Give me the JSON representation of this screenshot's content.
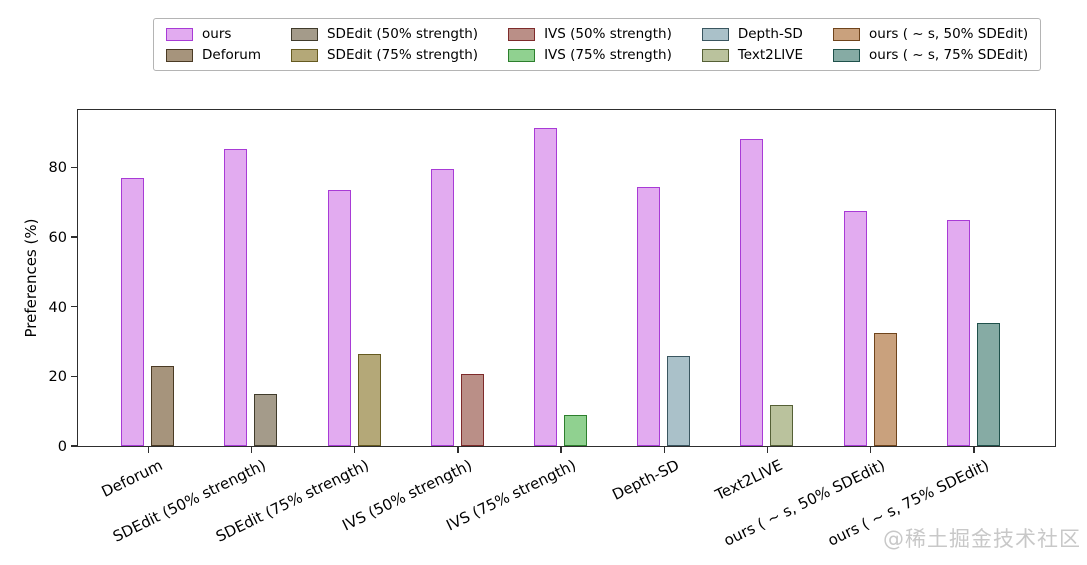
{
  "watermark": "@稀土掘金技术社区",
  "chart_data": {
    "type": "bar",
    "title": "",
    "xlabel": "",
    "ylabel": "Preferences (%)",
    "ylim": [
      0,
      96.5
    ],
    "yticks": [
      0,
      20,
      40,
      60,
      80
    ],
    "grid": false,
    "legend_position": "top-center",
    "ours_series": {
      "label": "ours",
      "fill": "#e2abf0",
      "edge": "#a83bd6"
    },
    "groups": [
      {
        "label": "Deforum",
        "ours_value": 77.0,
        "method_value": 23.0,
        "fill": "#a6947c",
        "edge": "#4a3a24"
      },
      {
        "label": "SDEdit (50% strength)",
        "ours_value": 85.3,
        "method_value": 14.8,
        "fill": "#a49b8a",
        "edge": "#403b2b"
      },
      {
        "label": "SDEdit (75% strength)",
        "ours_value": 73.5,
        "method_value": 26.5,
        "fill": "#b4a878",
        "edge": "#655a20"
      },
      {
        "label": "IVS (50% strength)",
        "ours_value": 79.5,
        "method_value": 20.6,
        "fill": "#ba8f87",
        "edge": "#7e2b2b"
      },
      {
        "label": "IVS (75% strength)",
        "ours_value": 91.2,
        "method_value": 8.8,
        "fill": "#90d190",
        "edge": "#2d7f2d"
      },
      {
        "label": "Depth-SD",
        "ours_value": 74.3,
        "method_value": 25.8,
        "fill": "#aac1c9",
        "edge": "#3a5660"
      },
      {
        "label": "Text2LIVE",
        "ours_value": 88.2,
        "method_value": 11.9,
        "fill": "#bac29d",
        "edge": "#556036"
      },
      {
        "label": "ours ( ~ s, 50% SDEdit)",
        "ours_value": 67.6,
        "method_value": 32.4,
        "fill": "#c9a17d",
        "edge": "#6f441c"
      },
      {
        "label": "ours ( ~ s, 75% SDEdit)",
        "ours_value": 64.8,
        "method_value": 35.3,
        "fill": "#86aba4",
        "edge": "#1f514b"
      }
    ],
    "legend_entries": [
      {
        "label": "ours",
        "fill": "#e2abf0",
        "edge": "#a83bd6"
      },
      {
        "label": "Deforum",
        "fill": "#a6947c",
        "edge": "#4a3a24"
      },
      {
        "label": "SDEdit (50% strength)",
        "fill": "#a49b8a",
        "edge": "#403b2b"
      },
      {
        "label": "SDEdit (75% strength)",
        "fill": "#b4a878",
        "edge": "#655a20"
      },
      {
        "label": "IVS (50% strength)",
        "fill": "#ba8f87",
        "edge": "#7e2b2b"
      },
      {
        "label": "IVS (75% strength)",
        "fill": "#90d190",
        "edge": "#2d7f2d"
      },
      {
        "label": "Depth-SD",
        "fill": "#aac1c9",
        "edge": "#3a5660"
      },
      {
        "label": "Text2LIVE",
        "fill": "#bac29d",
        "edge": "#556036"
      },
      {
        "label": "ours ( ~ s, 50% SDEdit)",
        "fill": "#c9a17d",
        "edge": "#6f441c"
      },
      {
        "label": "ours ( ~ s, 75% SDEdit)",
        "fill": "#86aba4",
        "edge": "#1f514b"
      }
    ]
  }
}
